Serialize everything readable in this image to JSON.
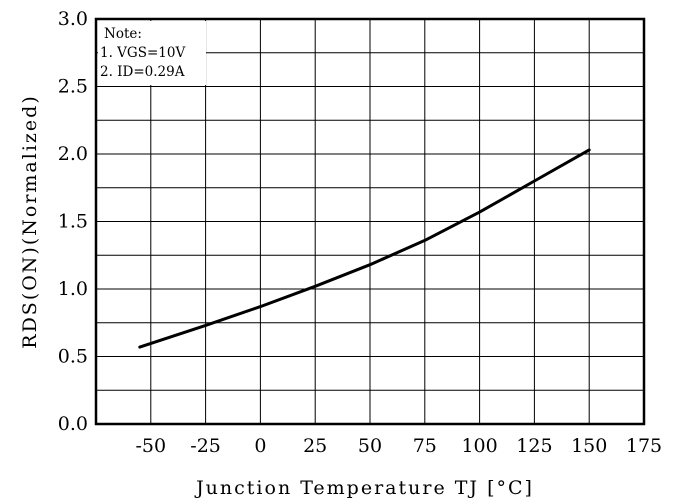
{
  "chart_data": {
    "type": "line",
    "title": "",
    "xlabel": "Junction Temperature  TJ  [°C]",
    "ylabel": "RDS(ON)(Normalized)",
    "xlim": [
      -75,
      175
    ],
    "ylim": [
      0.0,
      3.0
    ],
    "x_ticks": [
      -50,
      -25,
      0,
      25,
      50,
      75,
      100,
      125,
      150,
      175
    ],
    "x_tick_labels": [
      "-50",
      "-25",
      "0",
      "25",
      "50",
      "75",
      "100",
      "125",
      "150",
      "175"
    ],
    "y_ticks": [
      0.0,
      0.5,
      1.0,
      1.5,
      2.0,
      2.5,
      3.0
    ],
    "y_tick_labels": [
      "0.0",
      "0.5",
      "1.0",
      "1.5",
      "2.0",
      "2.5",
      "3.0"
    ],
    "grid": true,
    "series": [
      {
        "x": [
          -55,
          -25,
          0,
          25,
          50,
          75,
          100,
          125,
          150
        ],
        "y": [
          0.57,
          0.73,
          0.87,
          1.02,
          1.18,
          1.36,
          1.57,
          1.8,
          2.03
        ]
      }
    ],
    "note": {
      "lines": [
        "Note:",
        "1. VGS=10V",
        "2. ID=0.29A"
      ]
    }
  },
  "colors": {
    "line": "#000000",
    "grid": "#000000",
    "background": "#ffffff"
  }
}
